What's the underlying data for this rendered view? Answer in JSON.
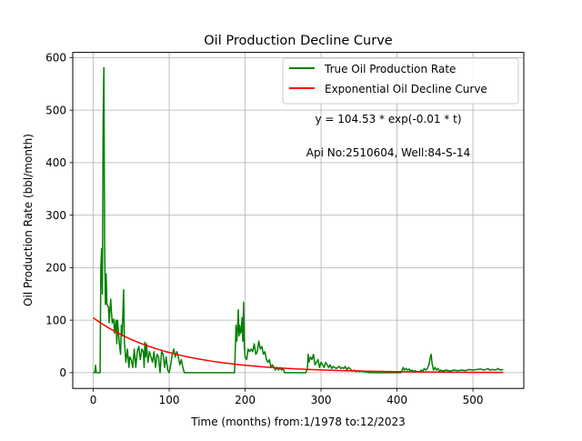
{
  "chart_data": {
    "type": "line",
    "title": "Oil Production Decline Curve",
    "xlabel": "Time (months) from:1/1978 to:12/2023",
    "ylabel": "Oil Production Rate (bbl/month)",
    "xlim": [
      -27,
      567
    ],
    "ylim": [
      -30,
      610
    ],
    "xticks": [
      0,
      100,
      200,
      300,
      400,
      500
    ],
    "yticks": [
      0,
      100,
      200,
      300,
      400,
      500,
      600
    ],
    "grid": true,
    "legend_position": "top-right",
    "annotations": [
      "y = 104.53 * exp(-0.01 * t)",
      "Api No:2510604, Well:84-S-14"
    ],
    "fit": {
      "a": 104.53,
      "b": 0.01,
      "t_max": 540
    },
    "series": [
      {
        "name": "True Oil Production Rate",
        "color": "#008000",
        "kind": "observed",
        "points": [
          [
            0,
            0
          ],
          [
            2,
            0
          ],
          [
            3,
            14
          ],
          [
            4,
            0
          ],
          [
            9,
            0
          ],
          [
            10,
            200
          ],
          [
            11,
            236
          ],
          [
            12,
            150
          ],
          [
            13,
            480
          ],
          [
            14,
            581
          ],
          [
            15,
            240
          ],
          [
            16,
            130
          ],
          [
            17,
            188
          ],
          [
            18,
            130
          ],
          [
            20,
            125
          ],
          [
            21,
            95
          ],
          [
            22,
            120
          ],
          [
            23,
            140
          ],
          [
            24,
            115
          ],
          [
            25,
            95
          ],
          [
            27,
            102
          ],
          [
            28,
            75
          ],
          [
            30,
            100
          ],
          [
            31,
            55
          ],
          [
            32,
            100
          ],
          [
            33,
            80
          ],
          [
            34,
            60
          ],
          [
            36,
            35
          ],
          [
            37,
            90
          ],
          [
            38,
            70
          ],
          [
            40,
            158
          ],
          [
            41,
            60
          ],
          [
            43,
            20
          ],
          [
            45,
            45
          ],
          [
            47,
            10
          ],
          [
            48,
            30
          ],
          [
            50,
            25
          ],
          [
            52,
            10
          ],
          [
            54,
            45
          ],
          [
            56,
            10
          ],
          [
            58,
            40
          ],
          [
            60,
            50
          ],
          [
            62,
            25
          ],
          [
            64,
            45
          ],
          [
            66,
            40
          ],
          [
            67,
            10
          ],
          [
            68,
            58
          ],
          [
            69,
            30
          ],
          [
            70,
            55
          ],
          [
            72,
            20
          ],
          [
            74,
            40
          ],
          [
            76,
            30
          ],
          [
            78,
            20
          ],
          [
            80,
            40
          ],
          [
            82,
            10
          ],
          [
            84,
            35
          ],
          [
            86,
            30
          ],
          [
            88,
            0
          ],
          [
            90,
            40
          ],
          [
            92,
            35
          ],
          [
            94,
            10
          ],
          [
            96,
            30
          ],
          [
            98,
            5
          ],
          [
            100,
            0
          ],
          [
            102,
            15
          ],
          [
            104,
            35
          ],
          [
            106,
            45
          ],
          [
            108,
            30
          ],
          [
            110,
            40
          ],
          [
            112,
            30
          ],
          [
            114,
            15
          ],
          [
            116,
            25
          ],
          [
            118,
            10
          ],
          [
            120,
            0
          ],
          [
            140,
            0
          ],
          [
            160,
            0
          ],
          [
            180,
            0
          ],
          [
            186,
            0
          ],
          [
            187,
            40
          ],
          [
            188,
            90
          ],
          [
            189,
            60
          ],
          [
            190,
            80
          ],
          [
            191,
            120
          ],
          [
            192,
            70
          ],
          [
            193,
            90
          ],
          [
            194,
            75
          ],
          [
            195,
            80
          ],
          [
            196,
            105
          ],
          [
            197,
            60
          ],
          [
            198,
            134
          ],
          [
            199,
            50
          ],
          [
            200,
            30
          ],
          [
            202,
            25
          ],
          [
            204,
            45
          ],
          [
            206,
            40
          ],
          [
            208,
            45
          ],
          [
            210,
            40
          ],
          [
            212,
            55
          ],
          [
            214,
            35
          ],
          [
            216,
            40
          ],
          [
            218,
            60
          ],
          [
            220,
            45
          ],
          [
            222,
            50
          ],
          [
            224,
            35
          ],
          [
            226,
            40
          ],
          [
            228,
            25
          ],
          [
            230,
            20
          ],
          [
            232,
            25
          ],
          [
            234,
            10
          ],
          [
            236,
            15
          ],
          [
            238,
            10
          ],
          [
            240,
            5
          ],
          [
            242,
            10
          ],
          [
            244,
            5
          ],
          [
            246,
            10
          ],
          [
            248,
            5
          ],
          [
            250,
            8
          ],
          [
            252,
            0
          ],
          [
            260,
            0
          ],
          [
            270,
            0
          ],
          [
            280,
            0
          ],
          [
            282,
            8
          ],
          [
            283,
            35
          ],
          [
            284,
            20
          ],
          [
            286,
            30
          ],
          [
            288,
            25
          ],
          [
            290,
            35
          ],
          [
            292,
            15
          ],
          [
            294,
            20
          ],
          [
            296,
            25
          ],
          [
            298,
            10
          ],
          [
            300,
            20
          ],
          [
            302,
            15
          ],
          [
            304,
            10
          ],
          [
            306,
            20
          ],
          [
            308,
            15
          ],
          [
            310,
            10
          ],
          [
            312,
            15
          ],
          [
            314,
            8
          ],
          [
            316,
            12
          ],
          [
            318,
            10
          ],
          [
            320,
            8
          ],
          [
            322,
            10
          ],
          [
            324,
            12
          ],
          [
            326,
            8
          ],
          [
            328,
            10
          ],
          [
            330,
            8
          ],
          [
            332,
            12
          ],
          [
            334,
            5
          ],
          [
            336,
            10
          ],
          [
            338,
            8
          ],
          [
            340,
            5
          ],
          [
            342,
            3
          ],
          [
            344,
            5
          ],
          [
            346,
            2
          ],
          [
            348,
            4
          ],
          [
            350,
            2
          ],
          [
            352,
            3
          ],
          [
            354,
            2
          ],
          [
            356,
            3
          ],
          [
            358,
            1
          ],
          [
            360,
            2
          ],
          [
            362,
            0
          ],
          [
            370,
            0
          ],
          [
            380,
            0
          ],
          [
            390,
            0
          ],
          [
            400,
            0
          ],
          [
            405,
            0
          ],
          [
            407,
            5
          ],
          [
            408,
            10
          ],
          [
            410,
            5
          ],
          [
            412,
            8
          ],
          [
            414,
            5
          ],
          [
            416,
            7
          ],
          [
            418,
            3
          ],
          [
            420,
            5
          ],
          [
            422,
            2
          ],
          [
            424,
            4
          ],
          [
            426,
            2
          ],
          [
            430,
            2
          ],
          [
            432,
            5
          ],
          [
            434,
            3
          ],
          [
            436,
            8
          ],
          [
            438,
            5
          ],
          [
            440,
            8
          ],
          [
            442,
            15
          ],
          [
            444,
            30
          ],
          [
            445,
            35
          ],
          [
            446,
            20
          ],
          [
            448,
            5
          ],
          [
            450,
            10
          ],
          [
            452,
            5
          ],
          [
            454,
            8
          ],
          [
            456,
            3
          ],
          [
            458,
            5
          ],
          [
            460,
            3
          ],
          [
            465,
            5
          ],
          [
            470,
            3
          ],
          [
            475,
            5
          ],
          [
            480,
            4
          ],
          [
            485,
            5
          ],
          [
            490,
            4
          ],
          [
            495,
            6
          ],
          [
            500,
            5
          ],
          [
            505,
            6
          ],
          [
            510,
            7
          ],
          [
            515,
            5
          ],
          [
            520,
            8
          ],
          [
            522,
            5
          ],
          [
            525,
            6
          ],
          [
            530,
            5
          ],
          [
            533,
            8
          ],
          [
            536,
            5
          ],
          [
            540,
            6
          ]
        ]
      },
      {
        "name": "Exponential Oil Decline Curve",
        "color": "#ff0000",
        "kind": "fit"
      }
    ]
  }
}
